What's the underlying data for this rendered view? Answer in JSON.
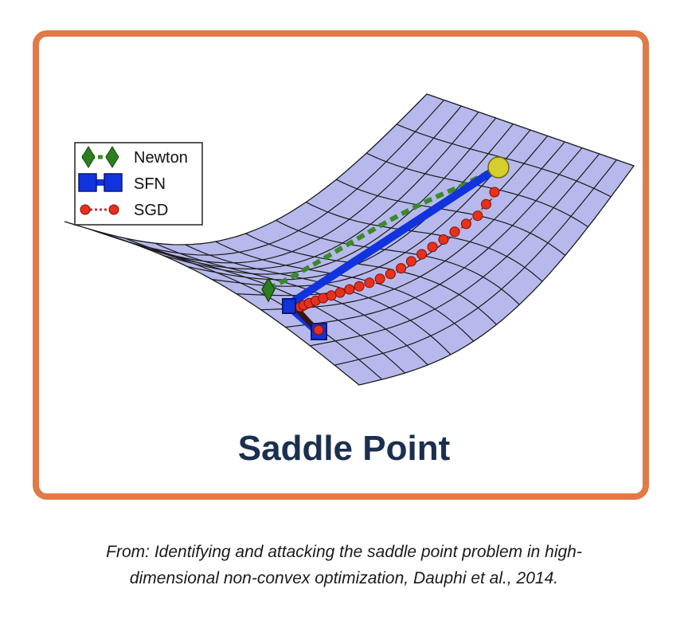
{
  "legend": [
    {
      "label": "Newton",
      "color": "#2e7d1e",
      "icon": "diamond-marker-icon"
    },
    {
      "label": "SFN",
      "color": "#1133dd",
      "icon": "square-marker-icon"
    },
    {
      "label": "SGD",
      "color": "#dd2a1a",
      "icon": "circle-marker-icon"
    }
  ],
  "surface": {
    "fill": "#b7b9ec",
    "line": "#1a1a1a"
  },
  "title": "Saddle Point",
  "caption": {
    "line1": "From: Identifying and attacking the saddle point problem in high-",
    "line2": "dimensional non-convex optimization, Dauphi et al., 2014."
  },
  "colors": {
    "border": "#e07a46",
    "title": "#1b2f4f",
    "start_point": "#d4cf2a"
  }
}
